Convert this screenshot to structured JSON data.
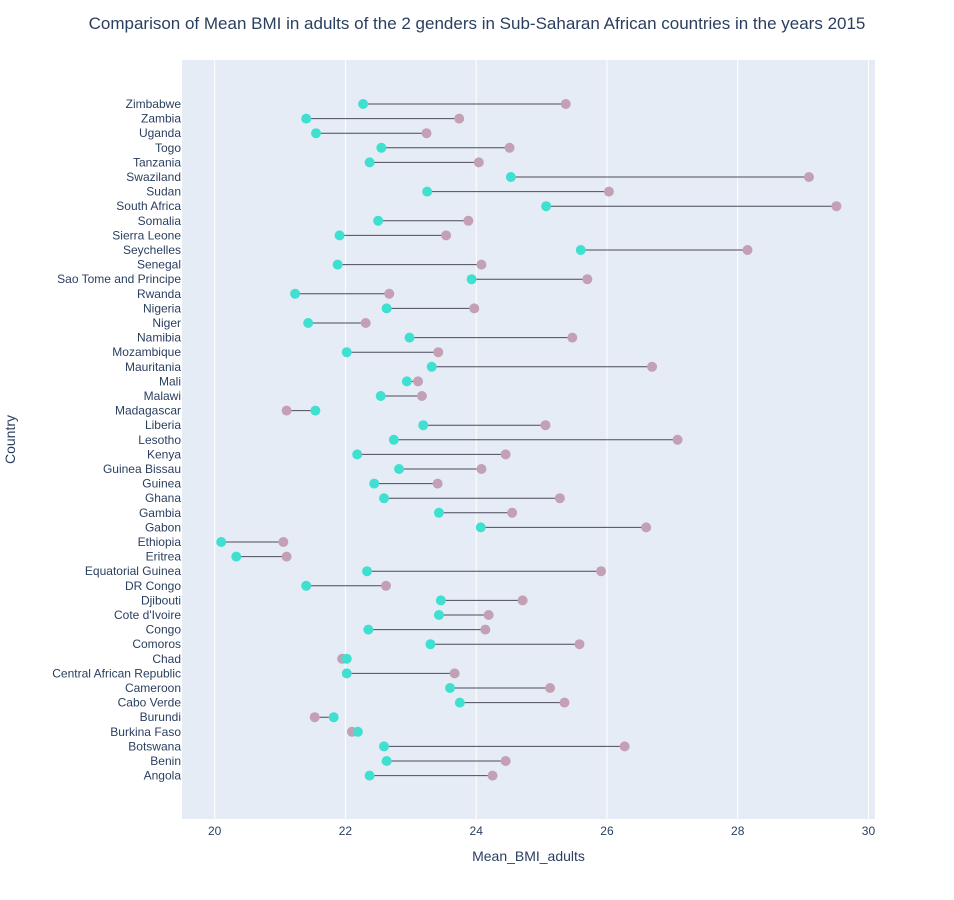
{
  "chart_data": {
    "type": "dumbbell",
    "title": "Comparison of Mean BMI in adults of the 2 genders in Sub-Saharan African countries in the years 2015",
    "xlabel": "Mean_BMI_adults",
    "ylabel": "Country",
    "xlim": [
      19.5,
      30.1
    ],
    "xticks": [
      20,
      22,
      24,
      26,
      28,
      30
    ],
    "grid": true,
    "legend": "none",
    "colors": {
      "plot_bg": "#e5ecf6",
      "grid": "#ffffff",
      "connector": "#4a4a5a",
      "male": "#40e0d0",
      "female": "#c4a0b4"
    },
    "categories": [
      "Zimbabwe",
      "Zambia",
      "Uganda",
      "Togo",
      "Tanzania",
      "Swaziland",
      "Sudan",
      "South Africa",
      "Somalia",
      "Sierra Leone",
      "Seychelles",
      "Senegal",
      "Sao Tome and Principe",
      "Rwanda",
      "Nigeria",
      "Niger",
      "Namibia",
      "Mozambique",
      "Mauritania",
      "Mali",
      "Malawi",
      "Madagascar",
      "Liberia",
      "Lesotho",
      "Kenya",
      "Guinea Bissau",
      "Guinea",
      "Ghana",
      "Gambia",
      "Gabon",
      "Ethiopia",
      "Eritrea",
      "Equatorial Guinea",
      "DR Congo",
      "Djibouti",
      "Cote d'Ivoire",
      "Congo",
      "Comoros",
      "Chad",
      "Central African Republic",
      "Cameroon",
      "Cabo Verde",
      "Burundi",
      "Burkina Faso",
      "Botswana",
      "Benin",
      "Angola"
    ],
    "series": [
      {
        "color_key": "male",
        "values": [
          22.27,
          21.4,
          21.55,
          22.55,
          22.37,
          24.53,
          23.25,
          25.07,
          22.5,
          21.91,
          25.6,
          21.88,
          23.93,
          21.23,
          22.63,
          21.43,
          22.98,
          22.02,
          23.32,
          22.94,
          22.54,
          21.54,
          23.19,
          22.74,
          22.18,
          22.82,
          22.44,
          22.59,
          23.43,
          24.07,
          20.1,
          20.33,
          22.33,
          21.4,
          23.46,
          23.43,
          22.35,
          23.3,
          22.02,
          22.02,
          23.6,
          23.75,
          21.82,
          22.19,
          22.59,
          22.63,
          22.37
        ]
      },
      {
        "color_key": "female",
        "values": [
          25.37,
          23.74,
          23.24,
          24.51,
          24.04,
          29.09,
          26.03,
          29.51,
          23.88,
          23.54,
          28.15,
          24.08,
          25.7,
          22.67,
          23.97,
          22.31,
          25.47,
          23.42,
          26.69,
          23.11,
          23.17,
          21.1,
          25.06,
          27.08,
          24.45,
          24.08,
          23.41,
          25.28,
          24.55,
          26.6,
          21.05,
          21.1,
          25.91,
          22.62,
          24.71,
          24.19,
          24.14,
          25.58,
          21.95,
          23.67,
          25.13,
          25.35,
          21.53,
          22.1,
          26.27,
          24.45,
          24.25
        ]
      }
    ]
  }
}
